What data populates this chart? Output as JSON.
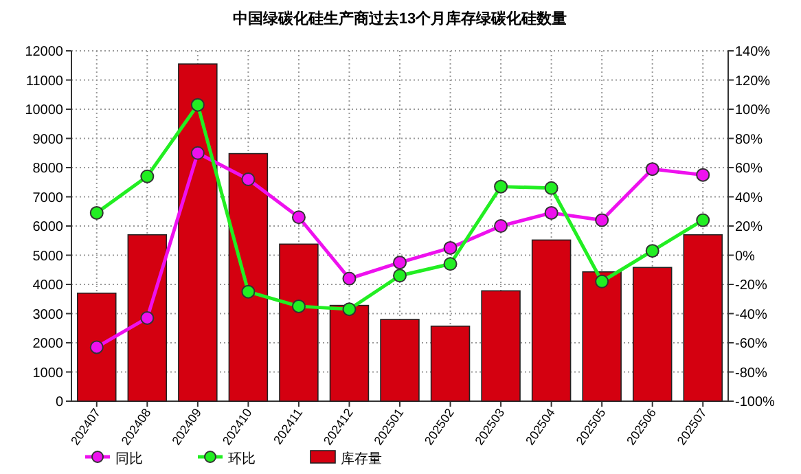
{
  "chart_data": {
    "type": "bar",
    "title": "中国绿碳化硅生产商过去13个月库存绿碳化硅数量",
    "categories": [
      "202407",
      "202408",
      "202409",
      "202410",
      "202411",
      "202412",
      "202501",
      "202502",
      "202503",
      "202504",
      "202505",
      "202506",
      "202507"
    ],
    "series": [
      {
        "name": "同比",
        "type": "line",
        "axis": "y2",
        "color": "#ee11ee",
        "values": [
          -63,
          -43,
          70,
          52,
          26,
          -16,
          -5,
          5,
          20,
          29,
          24,
          59,
          55
        ]
      },
      {
        "name": "环比",
        "type": "line",
        "axis": "y2",
        "color": "#22ee22",
        "values": [
          29,
          54,
          103,
          -25,
          -35,
          -37,
          -14,
          -6,
          47,
          46,
          -18,
          3,
          24
        ]
      },
      {
        "name": "库存量",
        "color": "#d40010",
        "values": [
          3700,
          5700,
          11550,
          8480,
          5380,
          3280,
          2800,
          2570,
          3780,
          5520,
          4430,
          4580,
          5700
        ]
      }
    ],
    "ylim": [
      0,
      12000
    ],
    "yticks": [
      0,
      1000,
      2000,
      3000,
      4000,
      5000,
      6000,
      7000,
      8000,
      9000,
      10000,
      11000,
      12000
    ],
    "y2lim": [
      -100,
      140
    ],
    "y2ticks": [
      {
        "value": -100,
        "label": "-100%"
      },
      {
        "value": -80,
        "label": "-80%"
      },
      {
        "value": -60,
        "label": "-60%"
      },
      {
        "value": -40,
        "label": "-40%"
      },
      {
        "value": -20,
        "label": "-20%"
      },
      {
        "value": 0,
        "label": "0%"
      },
      {
        "value": 20,
        "label": "20%"
      },
      {
        "value": 40,
        "label": "40%"
      },
      {
        "value": 60,
        "label": "60%"
      },
      {
        "value": 80,
        "label": "80%"
      },
      {
        "value": 100,
        "label": "100%"
      },
      {
        "value": 120,
        "label": "120%"
      },
      {
        "value": 140,
        "label": "140%"
      }
    ],
    "grid": true,
    "legend": "bottom",
    "marker": "circle"
  }
}
